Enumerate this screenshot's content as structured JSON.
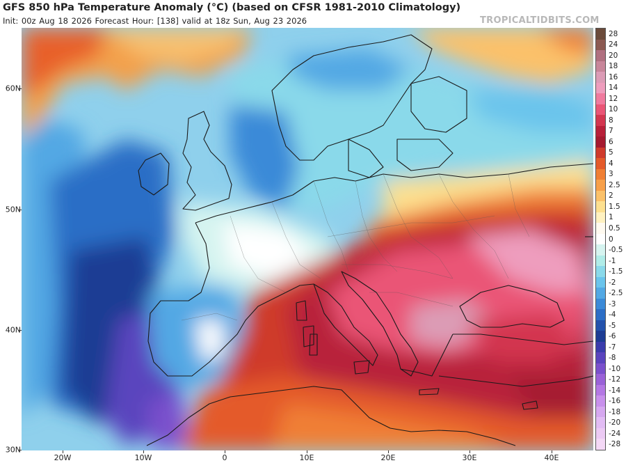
{
  "title": "GFS 850 hPa Temperature Anomaly (°C) (based on CFSR 1981-2010 Climatology)",
  "subtitle": "Init: 00z Aug 18 2026   Forecast Hour: [138]   valid at 18z Sun, Aug 23 2026",
  "brand": "TROPICALTIDBITS.COM",
  "latitude_labels": [
    {
      "label": "60N",
      "lat": 60
    },
    {
      "label": "50N",
      "lat": 50
    },
    {
      "label": "40N",
      "lat": 40
    },
    {
      "label": "30N",
      "lat": 30
    }
  ],
  "longitude_labels": [
    {
      "label": "20W",
      "lon": -20
    },
    {
      "label": "10W",
      "lon": -10
    },
    {
      "label": "0",
      "lon": 0
    },
    {
      "label": "10E",
      "lon": 10
    },
    {
      "label": "20E",
      "lon": 20
    },
    {
      "label": "30E",
      "lon": 30
    },
    {
      "label": "40E",
      "lon": 40
    }
  ],
  "colorbar": {
    "labels": [
      "28",
      "24",
      "20",
      "18",
      "16",
      "14",
      "12",
      "10",
      "8",
      "7",
      "6",
      "5",
      "4",
      "3",
      "2.5",
      "2",
      "1.5",
      "1",
      "0.5",
      "0",
      "-0.5",
      "-1",
      "-1.5",
      "-2",
      "-2.5",
      "-3",
      "-4",
      "-5",
      "-6",
      "-7",
      "-8",
      "-10",
      "-12",
      "-14",
      "-16",
      "-18",
      "-20",
      "-24",
      "-28"
    ],
    "colors": [
      "#6b4b3b",
      "#8c5a52",
      "#b07080",
      "#c8869a",
      "#dc9cb6",
      "#ee9dbd",
      "#f07a9e",
      "#ea5576",
      "#d33650",
      "#b8203a",
      "#a51a30",
      "#cf3a2c",
      "#e45a2a",
      "#f07f34",
      "#f7a04a",
      "#fbc16a",
      "#fde090",
      "#fff1c0",
      "#fffaf0",
      "#ffffff",
      "#d6f4f0",
      "#b0ece8",
      "#8ad9ea",
      "#6ac4ec",
      "#52a8e4",
      "#3b8ad8",
      "#2c6ec6",
      "#2352ac",
      "#1d3c94",
      "#3a3cac",
      "#5a44be",
      "#7a50cc",
      "#9a62d8",
      "#b478e4",
      "#c890ec",
      "#d6a8f0",
      "#e2bcf4",
      "#eccaf4",
      "#f4d8f6"
    ]
  }
}
